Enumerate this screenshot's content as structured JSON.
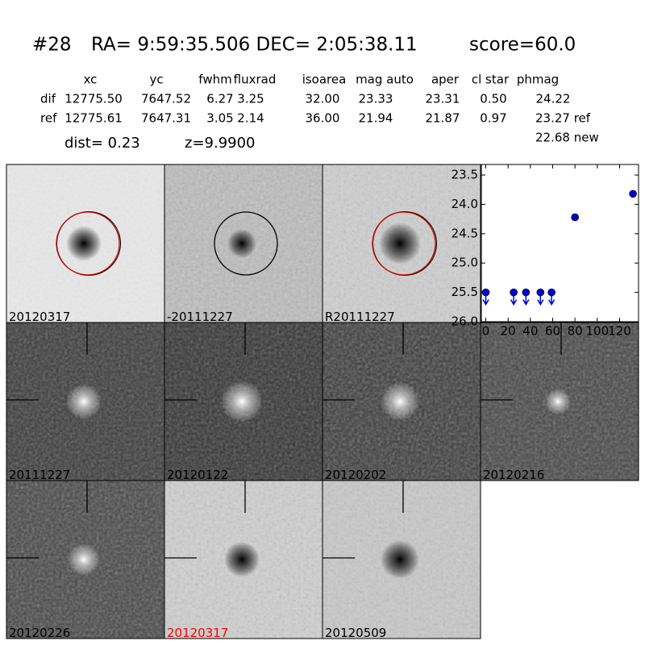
{
  "header": {
    "id": "#28",
    "coords": "RA= 9:59:35.506 DEC= 2:05:38.11",
    "score": "score=60.0"
  },
  "table": {
    "columns": [
      "xc",
      "yc",
      "fwhm",
      "fluxrad",
      "isoarea",
      "mag auto",
      "aper",
      "cl star",
      "phmag"
    ],
    "rows": [
      [
        "dif",
        "12775.50",
        "7647.52",
        "6.27",
        "3.25",
        "32.00",
        "23.33",
        "23.31",
        "0.50",
        "24.22"
      ],
      [
        "ref",
        "12775.61",
        "7647.31",
        "3.05",
        "2.14",
        "36.00",
        "21.94",
        "21.87",
        "0.97",
        "23.27 ref"
      ]
    ],
    "extra": "22.68 new"
  },
  "dist": "dist=  0.23",
  "z": "z=9.9900",
  "panels": [
    {
      "label": "20120317"
    },
    {
      "label": "-20111227"
    },
    {
      "label": "R20111227"
    },
    {
      "label": "20111227"
    },
    {
      "label": "20120122"
    },
    {
      "label": "20120202"
    },
    {
      "label": "20120216"
    },
    {
      "label": "20120226"
    },
    {
      "label": "20120317",
      "color": "#ff0000"
    },
    {
      "label": "20120509"
    }
  ],
  "chart_data": {
    "type": "scatter",
    "invert_y": true,
    "xlim": [
      -4,
      137
    ],
    "ylim": [
      26.0,
      23.32
    ],
    "xticks": [
      0,
      20,
      40,
      60,
      80,
      100,
      120
    ],
    "yticks": [
      {
        "value": 23.5,
        "label": "23.5"
      },
      {
        "value": 24,
        "label": "24.0"
      },
      {
        "value": 24.5,
        "label": "24.5"
      },
      {
        "value": 25,
        "label": "25.0"
      },
      {
        "value": 25.5,
        "label": "25.5"
      },
      {
        "value": 26,
        "label": "26.0"
      }
    ],
    "series": [
      {
        "color": "#0000cc",
        "x": [
          80,
          132
        ],
        "values": [
          24.22,
          23.82
        ],
        "errors": [
          0.05,
          0.04
        ]
      },
      {
        "color": "#0000cc",
        "x": [
          0,
          25,
          36,
          49,
          59
        ],
        "values": [
          25.5,
          25.5,
          25.5,
          25.5,
          25.5
        ],
        "upper_limit": true
      }
    ]
  }
}
